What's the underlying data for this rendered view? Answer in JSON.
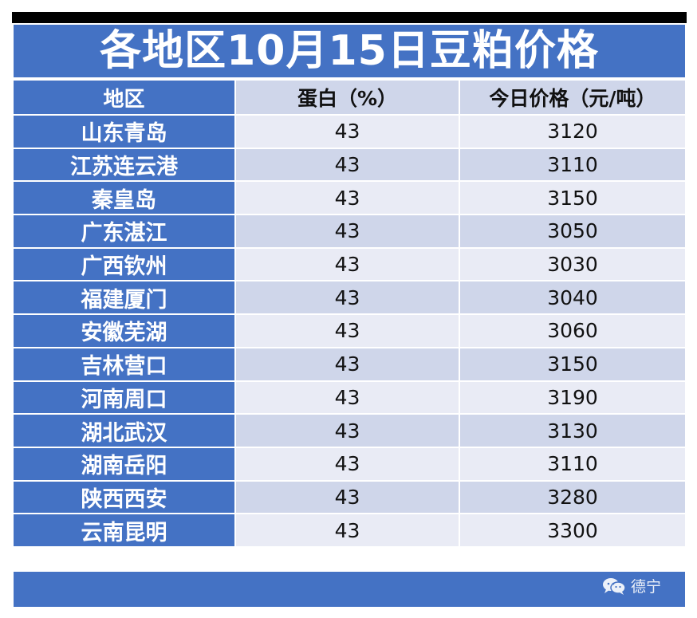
{
  "title": "各地区10月15日豆粕价格",
  "headers": {
    "region": "地区",
    "protein": "蛋白（%）",
    "price": "今日价格（元/吨）"
  },
  "rows": [
    {
      "region": "山东青岛",
      "protein": "43",
      "price": "3120"
    },
    {
      "region": "江苏连云港",
      "protein": "43",
      "price": "3110"
    },
    {
      "region": "秦皇岛",
      "protein": "43",
      "price": "3150"
    },
    {
      "region": "广东湛江",
      "protein": "43",
      "price": "3050"
    },
    {
      "region": "广西钦州",
      "protein": "43",
      "price": "3030"
    },
    {
      "region": "福建厦门",
      "protein": "43",
      "price": "3040"
    },
    {
      "region": "安徽芜湖",
      "protein": "43",
      "price": "3060"
    },
    {
      "region": "吉林营口",
      "protein": "43",
      "price": "3150"
    },
    {
      "region": "河南周口",
      "protein": "43",
      "price": "3190"
    },
    {
      "region": "湖北武汉",
      "protein": "43",
      "price": "3130"
    },
    {
      "region": "湖南岳阳",
      "protein": "43",
      "price": "3110"
    },
    {
      "region": "陕西西安",
      "protein": "43",
      "price": "3280"
    },
    {
      "region": "云南昆明",
      "protein": "43",
      "price": "3300"
    }
  ],
  "watermark": {
    "icon": "wechat-icon",
    "text": "德宁"
  },
  "colors": {
    "header_blue": "#4472c4",
    "row_light": "#e9ebf5",
    "row_dark": "#cfd6ea"
  }
}
